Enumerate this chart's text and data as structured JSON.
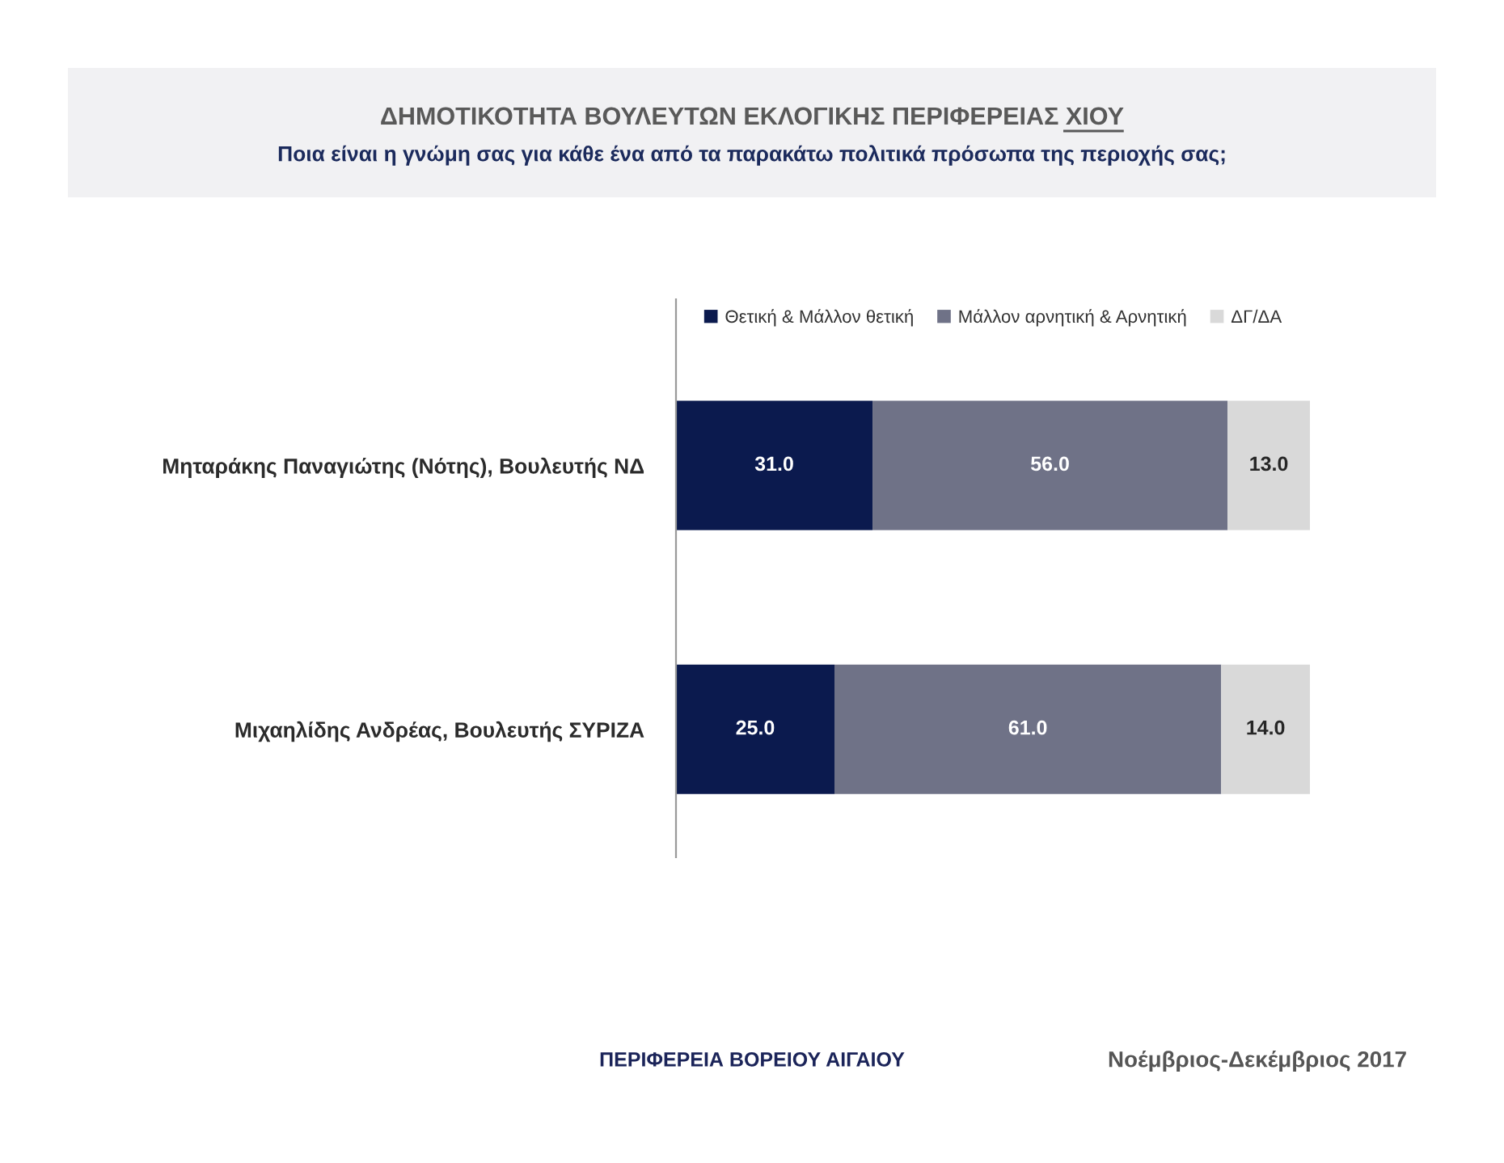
{
  "chart_data": {
    "type": "bar",
    "orientation": "horizontal",
    "stacked": true,
    "title": "ΔΗΜΟΤΙΚΟΤΗΤΑ ΒΟΥΛΕΥΤΩΝ ΕΚΛΟΓΙΚΗΣ ΠΕΡΙΦΕΡΕΙΑΣ ΧΙΟΥ",
    "subtitle": "Ποια είναι η γνώμη σας για κάθε ένα από τα παρακάτω πολιτικά πρόσωπα της περιοχής σας;",
    "categories": [
      "Μηταράκης Παναγιώτης (Νότης), Βουλευτής ΝΔ",
      "Μιχαηλίδης Ανδρέας, Βουλευτής ΣΥΡΙΖΑ"
    ],
    "series": [
      {
        "name": "Θετική & Μάλλον θετική",
        "color": "#0b1a4e",
        "values": [
          31,
          25
        ],
        "value_labels": [
          "31.0",
          "25.0"
        ]
      },
      {
        "name": "Μάλλον αρνητική & Αρνητική",
        "color": "#6f7287",
        "values": [
          56,
          61
        ],
        "value_labels": [
          "56.0",
          "61.0"
        ]
      },
      {
        "name": "ΔΓ/ΔΑ",
        "color": "#d9d9d9",
        "values": [
          13,
          14
        ],
        "value_labels": [
          "13.0",
          "14.0"
        ]
      }
    ],
    "legend": "top",
    "tick_labels": "y",
    "annotations": [
      "ΠΕΡΙΦΕΡΕΙΑ ΒΟΡΕΙΟΥ ΑΙΓΑΙΟΥ",
      "Νοέμβριος-Δεκέμβριος 2017"
    ]
  }
}
